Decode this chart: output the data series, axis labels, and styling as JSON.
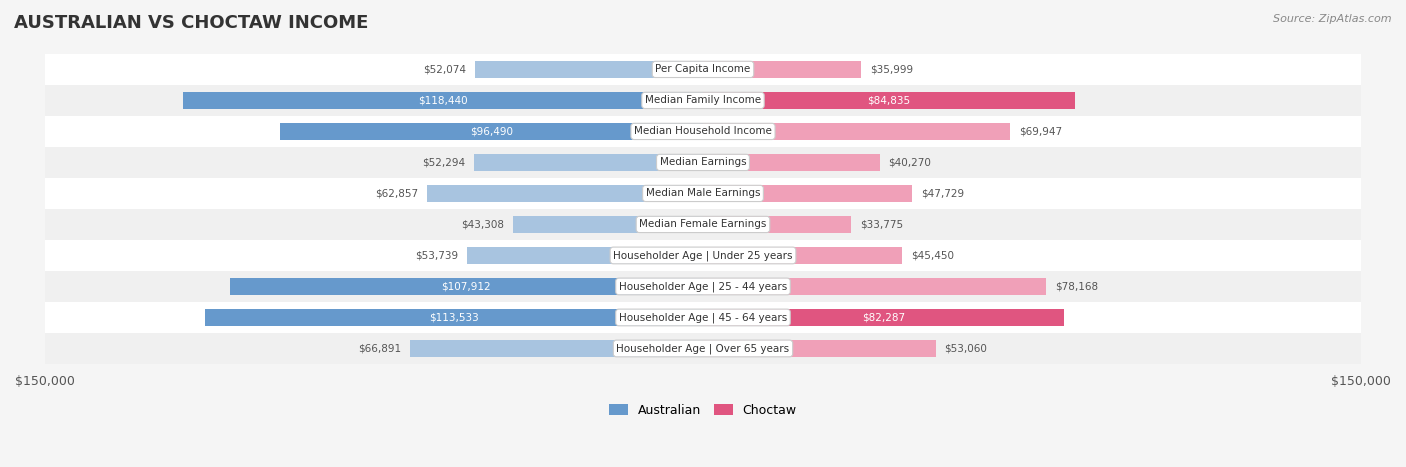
{
  "title": "AUSTRALIAN VS CHOCTAW INCOME",
  "source": "Source: ZipAtlas.com",
  "max_val": 150000,
  "categories": [
    "Per Capita Income",
    "Median Family Income",
    "Median Household Income",
    "Median Earnings",
    "Median Male Earnings",
    "Median Female Earnings",
    "Householder Age | Under 25 years",
    "Householder Age | 25 - 44 years",
    "Householder Age | 45 - 64 years",
    "Householder Age | Over 65 years"
  ],
  "australian_values": [
    52074,
    118440,
    96490,
    52294,
    62857,
    43308,
    53739,
    107912,
    113533,
    66891
  ],
  "choctaw_values": [
    35999,
    84835,
    69947,
    40270,
    47729,
    33775,
    45450,
    78168,
    82287,
    53060
  ],
  "australian_labels": [
    "$52,074",
    "$118,440",
    "$96,490",
    "$52,294",
    "$62,857",
    "$43,308",
    "$53,739",
    "$107,912",
    "$113,533",
    "$66,891"
  ],
  "choctaw_labels": [
    "$35,999",
    "$84,835",
    "$69,947",
    "$40,270",
    "$47,729",
    "$33,775",
    "$45,450",
    "$78,168",
    "$82,287",
    "$53,060"
  ],
  "australian_color_light": "#a8c4e0",
  "australian_color_strong": "#6699cc",
  "choctaw_color_light": "#f0a0b8",
  "choctaw_color_strong": "#e05580",
  "bg_color": "#f5f5f5",
  "row_bg_light": "#f0f0f0",
  "row_bg_white": "#ffffff",
  "label_color_outside": "#555555",
  "label_color_inside": "#ffffff",
  "threshold_inside": 80000,
  "bar_height": 0.55,
  "xlabel_left": "$150,000",
  "xlabel_right": "$150,000",
  "legend_australian": "Australian",
  "legend_choctaw": "Choctaw"
}
